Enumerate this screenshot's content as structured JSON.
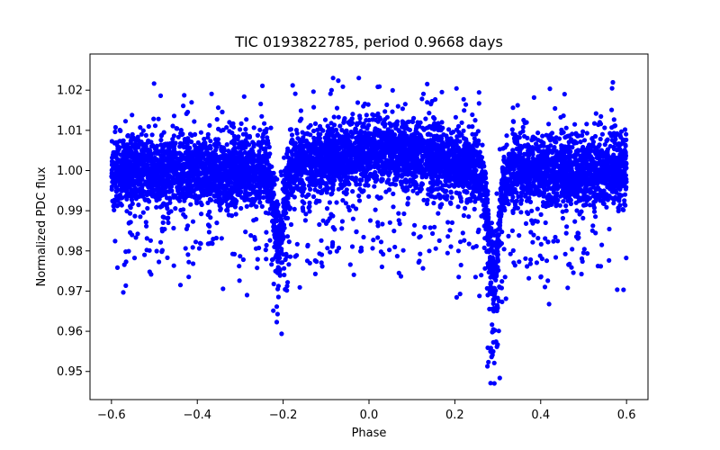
{
  "chart_data": {
    "type": "scatter",
    "title": "TIC 0193822785, period 0.9668 days",
    "xlabel": "Phase",
    "ylabel": "Normalized PDC flux",
    "xlim": [
      -0.65,
      0.65
    ],
    "ylim": [
      0.943,
      1.029
    ],
    "xticks": [
      -0.6,
      -0.4,
      -0.2,
      0.0,
      0.2,
      0.4,
      0.6
    ],
    "xtick_labels": [
      "−0.6",
      "−0.4",
      "−0.2",
      "0.0",
      "0.2",
      "0.4",
      "0.6"
    ],
    "yticks": [
      0.95,
      0.96,
      0.97,
      0.98,
      0.99,
      1.0,
      1.01,
      1.02
    ],
    "ytick_labels": [
      "0.95",
      "0.96",
      "0.97",
      "0.98",
      "0.99",
      "1.00",
      "1.01",
      "1.02"
    ],
    "marker_color": "#0000ff",
    "phase_range": [
      -0.6,
      0.6
    ],
    "baseline_flux": 1.0,
    "primary_eclipse": {
      "phase": 0.29,
      "min_flux": 0.947
    },
    "secondary_eclipse": {
      "phase": -0.21,
      "min_flux": 0.959
    },
    "max_flux": 1.0235,
    "grid": false
  }
}
